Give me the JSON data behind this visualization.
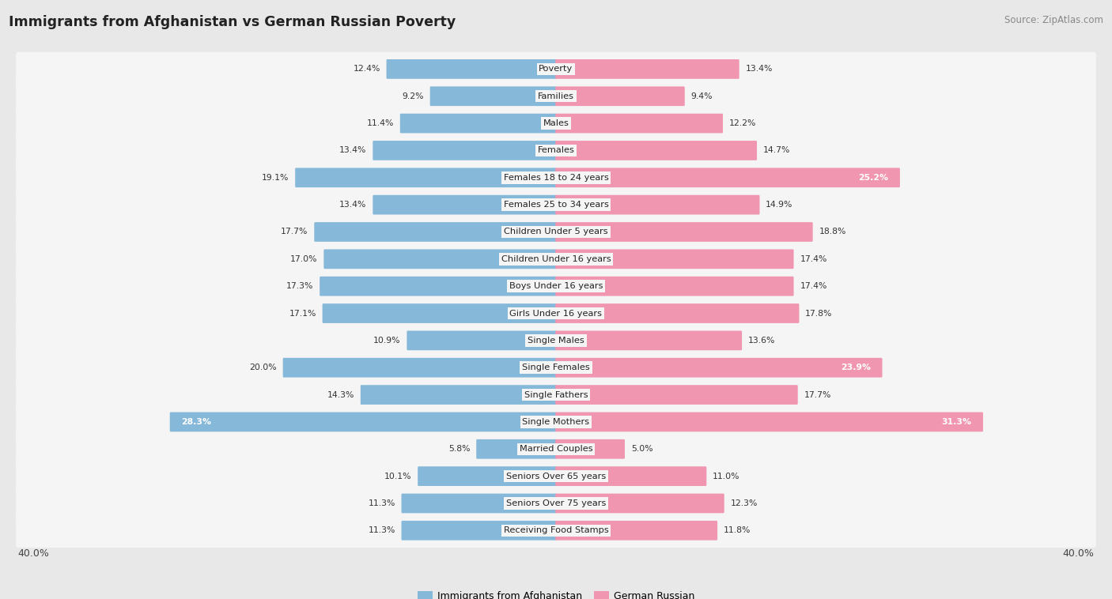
{
  "title": "Immigrants from Afghanistan vs German Russian Poverty",
  "source": "Source: ZipAtlas.com",
  "categories": [
    "Poverty",
    "Families",
    "Males",
    "Females",
    "Females 18 to 24 years",
    "Females 25 to 34 years",
    "Children Under 5 years",
    "Children Under 16 years",
    "Boys Under 16 years",
    "Girls Under 16 years",
    "Single Males",
    "Single Females",
    "Single Fathers",
    "Single Mothers",
    "Married Couples",
    "Seniors Over 65 years",
    "Seniors Over 75 years",
    "Receiving Food Stamps"
  ],
  "afghanistan": [
    12.4,
    9.2,
    11.4,
    13.4,
    19.1,
    13.4,
    17.7,
    17.0,
    17.3,
    17.1,
    10.9,
    20.0,
    14.3,
    28.3,
    5.8,
    10.1,
    11.3,
    11.3
  ],
  "german_russian": [
    13.4,
    9.4,
    12.2,
    14.7,
    25.2,
    14.9,
    18.8,
    17.4,
    17.4,
    17.8,
    13.6,
    23.9,
    17.7,
    31.3,
    5.0,
    11.0,
    12.3,
    11.8
  ],
  "afghanistan_color": "#85b8d9",
  "german_russian_color": "#f096b0",
  "background_color": "#e8e8e8",
  "row_bg_color": "#f5f5f5",
  "axis_max": 40.0,
  "legend_label_afg": "Immigrants from Afghanistan",
  "legend_label_gr": "German Russian",
  "value_threshold_inside": 22.0
}
